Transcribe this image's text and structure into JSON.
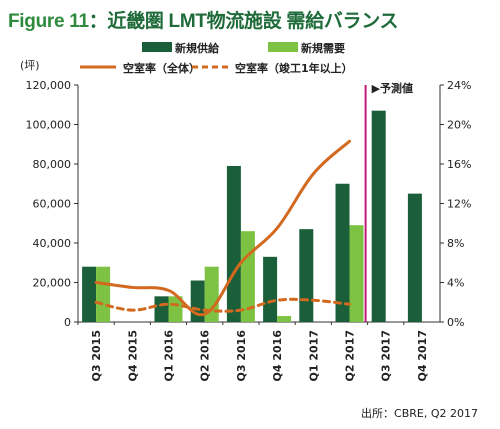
{
  "chart_data": {
    "type": "bar",
    "title": "Figure 11：近畿圏 LMT物流施設 需給バランス",
    "title_prefix": "Figure 11",
    "title_rest": "：近畿圏 LMT物流施設 需給バランス",
    "y_unit_label": "(坪)",
    "categories": [
      "Q3 2015",
      "Q4 2015",
      "Q1 2016",
      "Q2 2016",
      "Q3 2016",
      "Q4 2016",
      "Q1 2017",
      "Q2 2017",
      "Q3 2017",
      "Q4 2017"
    ],
    "series": [
      {
        "name": "新規供給",
        "kind": "bar",
        "axis": "left",
        "color": "#1a5e3a",
        "values": [
          28000,
          0,
          13000,
          21000,
          79000,
          33000,
          47000,
          70000,
          107000,
          65000
        ]
      },
      {
        "name": "新規需要",
        "kind": "bar",
        "axis": "left",
        "color": "#7dc242",
        "values": [
          28000,
          0,
          13000,
          28000,
          46000,
          3000,
          0,
          49000,
          0,
          0
        ]
      },
      {
        "name": "空室率（全体）",
        "kind": "line",
        "axis": "right",
        "color": "#d2691e",
        "values": [
          4.0,
          3.5,
          3.2,
          0.8,
          6.0,
          9.5,
          15.0,
          18.3,
          null,
          null
        ]
      },
      {
        "name": "空室率（竣工1年以上）",
        "kind": "dashed-line",
        "axis": "right",
        "color": "#d2691e",
        "values": [
          2.0,
          1.2,
          1.8,
          1.2,
          1.2,
          2.2,
          2.2,
          1.8,
          null,
          null
        ]
      }
    ],
    "y_left": {
      "min": 0,
      "max": 120000,
      "ticks": [
        "0",
        "20,000",
        "40,000",
        "60,000",
        "80,000",
        "100,000",
        "120,000"
      ]
    },
    "y_right": {
      "min": 0,
      "max": 24,
      "ticks": [
        "0%",
        "4%",
        "8%",
        "12%",
        "16%",
        "20%",
        "24%"
      ]
    },
    "forecast_label": "▶予測値",
    "forecast_start_category": "Q3 2017",
    "forecast_line_color": "#c0187a",
    "grid": false,
    "legend_position": "top"
  },
  "source_label": "出所：CBRE, Q2 2017"
}
